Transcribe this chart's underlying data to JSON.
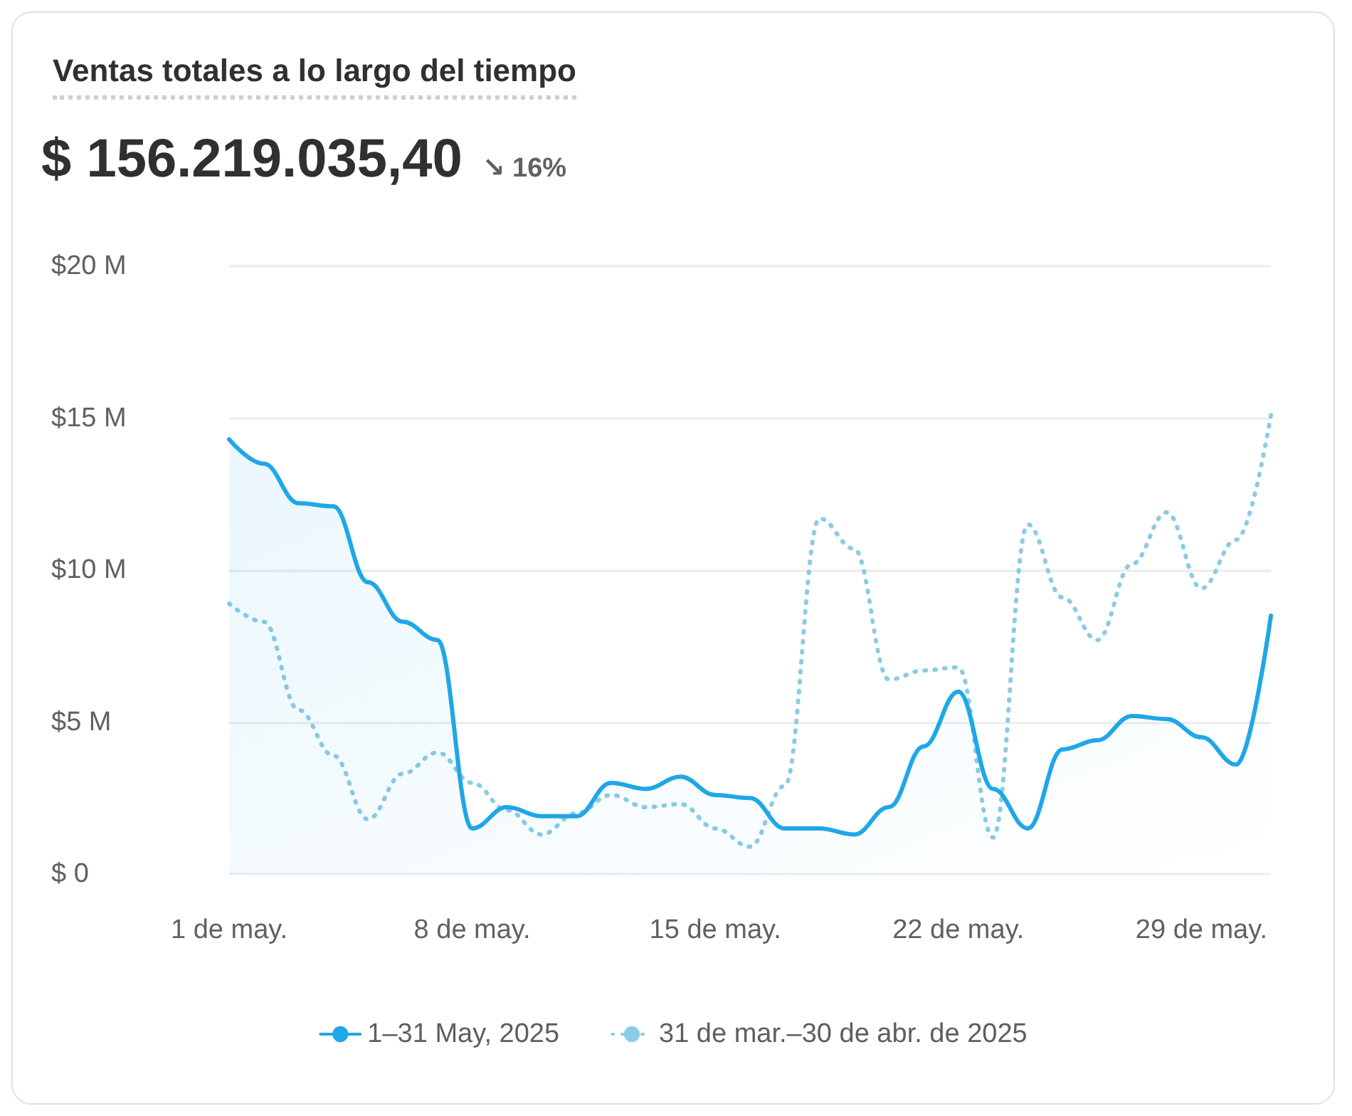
{
  "chart_data": {
    "type": "line",
    "title": "Ventas totales a lo largo del tiempo",
    "subtitle": "$ 156.219.035,40",
    "annotations": [
      "↘ 16%"
    ],
    "categories": [
      "1 de may.",
      null,
      null,
      null,
      null,
      null,
      null,
      "8 de may.",
      null,
      null,
      null,
      null,
      null,
      null,
      "15 de may.",
      null,
      null,
      null,
      null,
      null,
      null,
      "22 de may.",
      null,
      null,
      null,
      null,
      null,
      null,
      "29 de may.",
      null,
      null
    ],
    "ylim": [
      0,
      20
    ],
    "yticks": [
      {
        "value": 0,
        "label": "$ 0"
      },
      {
        "value": 5,
        "label": "$5 M"
      },
      {
        "value": 10,
        "label": "$10 M"
      },
      {
        "value": 15,
        "label": "$15 M"
      },
      {
        "value": 20,
        "label": "$20 M"
      }
    ],
    "grid": "y",
    "legend": "bottom",
    "marker": "none",
    "series": [
      {
        "name": "1–31 May, 2025",
        "type": "area",
        "color": "#1fa7e6",
        "line_style": "solid",
        "values": [
          14.3,
          13.5,
          12.2,
          12.1,
          9.6,
          8.3,
          7.7,
          1.5,
          2.2,
          1.9,
          1.9,
          3.0,
          2.8,
          3.2,
          2.6,
          2.5,
          1.5,
          1.5,
          1.3,
          2.2,
          4.2,
          6.0,
          2.8,
          1.5,
          4.1,
          4.4,
          5.2,
          5.1,
          4.5,
          3.6,
          8.5
        ]
      },
      {
        "name": "31 de mar.–30 de abr. de 2025",
        "color": "#8ccbe6",
        "line_style": "dotted",
        "values": [
          8.9,
          8.3,
          5.4,
          3.9,
          1.8,
          3.3,
          4.0,
          3.0,
          2.1,
          1.3,
          2.0,
          2.6,
          2.2,
          2.3,
          1.5,
          0.9,
          2.9,
          11.7,
          10.7,
          6.4,
          6.7,
          6.8,
          1.2,
          11.5,
          9.1,
          7.7,
          10.2,
          11.9,
          9.4,
          11.0,
          15.1
        ]
      }
    ]
  }
}
